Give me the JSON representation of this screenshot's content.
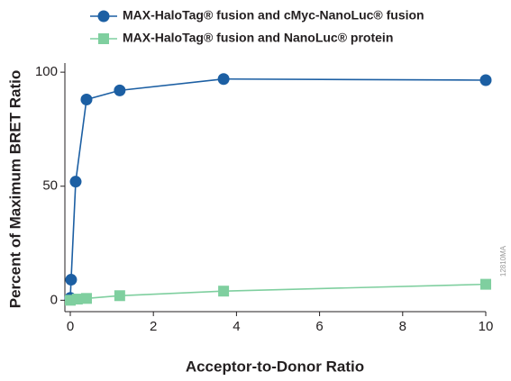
{
  "chart_data": {
    "type": "scatter",
    "x_label": "Acceptor-to-Donor Ratio",
    "y_label": "Percent of Maximum BRET Ratio",
    "annotation": "12810MA",
    "xlim": [
      -0.13,
      10
    ],
    "ylim": [
      -5,
      104
    ],
    "xticks": [
      0,
      2,
      4,
      6,
      8,
      10
    ],
    "yticks": [
      0,
      50,
      100
    ],
    "legend": "top",
    "series": [
      {
        "name": "MAX-HaloTag® fusion and cMyc-NanoLuc® fusion",
        "color": "#1c5fa3",
        "marker": "circle",
        "x": [
          0,
          0.02,
          0.13,
          0.39,
          1.19,
          3.69,
          10
        ],
        "values": [
          1,
          9,
          52,
          88,
          92,
          97,
          96.5
        ]
      },
      {
        "name": "MAX-HaloTag® fusion and NanoLuc® protein",
        "color": "#7fcf9f",
        "marker": "square",
        "x": [
          0,
          0.17,
          0.39,
          1.19,
          3.69,
          10
        ],
        "values": [
          0,
          0.5,
          0.8,
          2,
          4,
          7
        ]
      }
    ]
  }
}
